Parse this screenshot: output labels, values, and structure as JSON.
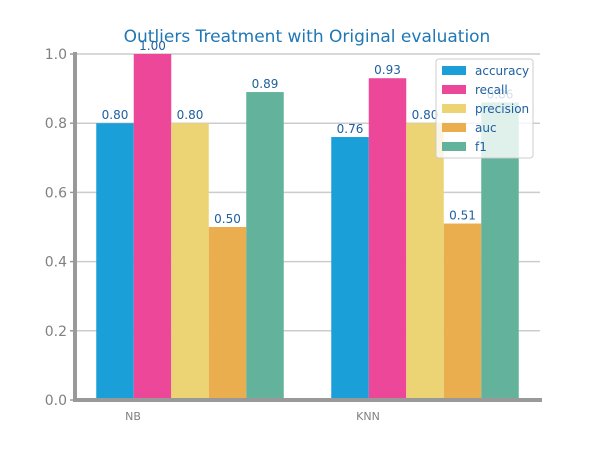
{
  "chart_data": {
    "type": "bar",
    "title": "Outliers Treatment with Original evaluation",
    "xlabel": "",
    "ylabel": "",
    "categories": [
      "NB",
      "KNN"
    ],
    "ylim": [
      0,
      1.0
    ],
    "yticks": [
      "0.0",
      "0.2",
      "0.4",
      "0.6",
      "0.8",
      "1.0"
    ],
    "grid": "horizontal",
    "legend_position": "top-right",
    "series": [
      {
        "name": "accuracy",
        "color": "#1a9fd9",
        "values": [
          0.8,
          0.76
        ],
        "labels": [
          "0.80",
          "0.76"
        ]
      },
      {
        "name": "recall",
        "color": "#ec4799",
        "values": [
          1.0,
          0.93
        ],
        "labels": [
          "1.00",
          "0.93"
        ]
      },
      {
        "name": "precision",
        "color": "#ecd374",
        "values": [
          0.8,
          0.8
        ],
        "labels": [
          "0.80",
          "0.80"
        ]
      },
      {
        "name": "auc",
        "color": "#eaae4f",
        "values": [
          0.5,
          0.51
        ],
        "labels": [
          "0.50",
          "0.51"
        ]
      },
      {
        "name": "f1",
        "color": "#63b29c",
        "values": [
          0.89,
          0.86
        ],
        "labels": [
          "0.89",
          "0.86"
        ]
      }
    ]
  }
}
